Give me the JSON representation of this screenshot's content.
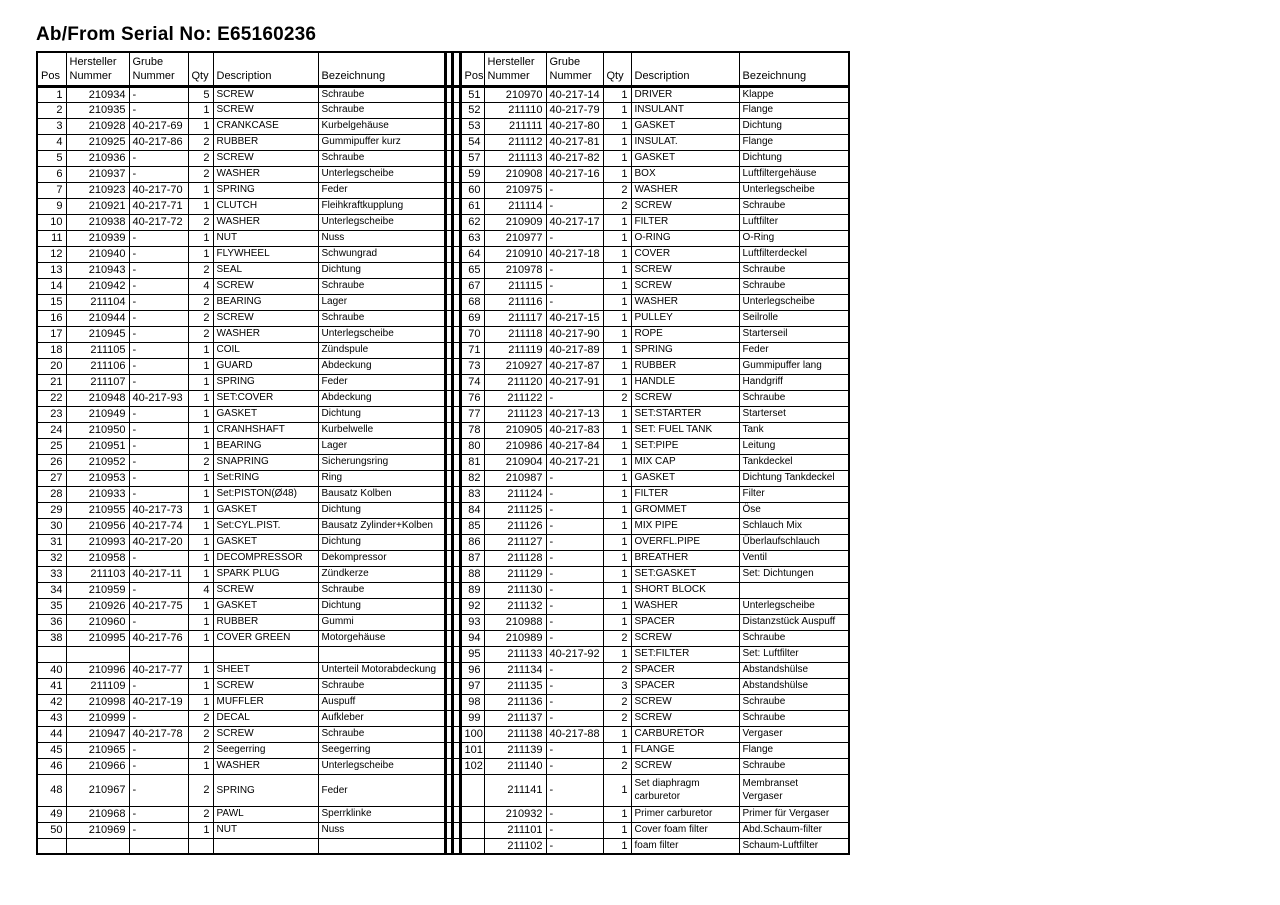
{
  "title": "Ab/From Serial No: E65160236",
  "colors": {
    "text": "#000000",
    "border": "#000000",
    "background": "#ffffff"
  },
  "table": {
    "headers": [
      "Pos",
      "Hersteller\nNummer",
      "Grube\nNummer",
      "Qty",
      "Description",
      "Bezeichnung"
    ],
    "rows": [
      {
        "l": [
          "1",
          "210934",
          "-",
          "5",
          "SCREW",
          "Schraube"
        ],
        "r": [
          "51",
          "210970",
          "40-217-14",
          "1",
          "DRIVER",
          "Klappe"
        ]
      },
      {
        "l": [
          "2",
          "210935",
          "-",
          "1",
          "SCREW",
          "Schraube"
        ],
        "r": [
          "52",
          "211110",
          "40-217-79",
          "1",
          "INSULANT",
          "Flange"
        ]
      },
      {
        "l": [
          "3",
          "210928",
          "40-217-69",
          "1",
          "CRANKCASE",
          "Kurbelgehäuse"
        ],
        "r": [
          "53",
          "211111",
          "40-217-80",
          "1",
          "GASKET",
          "Dichtung"
        ]
      },
      {
        "l": [
          "4",
          "210925",
          "40-217-86",
          "2",
          "RUBBER",
          "Gummipuffer kurz"
        ],
        "r": [
          "54",
          "211112",
          "40-217-81",
          "1",
          "INSULAT.",
          "Flange"
        ]
      },
      {
        "l": [
          "5",
          "210936",
          "-",
          "2",
          "SCREW",
          "Schraube"
        ],
        "r": [
          "57",
          "211113",
          "40-217-82",
          "1",
          "GASKET",
          "Dichtung"
        ]
      },
      {
        "l": [
          "6",
          "210937",
          "-",
          "2",
          "WASHER",
          "Unterlegscheibe"
        ],
        "r": [
          "59",
          "210908",
          "40-217-16",
          "1",
          "BOX",
          "Luftfiltergehäuse"
        ]
      },
      {
        "l": [
          "7",
          "210923",
          "40-217-70",
          "1",
          "SPRING",
          "Feder"
        ],
        "r": [
          "60",
          "210975",
          "-",
          "2",
          "WASHER",
          "Unterlegscheibe"
        ]
      },
      {
        "l": [
          "9",
          "210921",
          "40-217-71",
          "1",
          "CLUTCH",
          "Fleihkraftkupplung"
        ],
        "r": [
          "61",
          "211114",
          "-",
          "2",
          "SCREW",
          "Schraube"
        ]
      },
      {
        "l": [
          "10",
          "210938",
          "40-217-72",
          "2",
          "WASHER",
          "Unterlegscheibe"
        ],
        "r": [
          "62",
          "210909",
          "40-217-17",
          "1",
          "FILTER",
          "Luftfilter"
        ]
      },
      {
        "l": [
          "11",
          "210939",
          "-",
          "1",
          "NUT",
          "Nuss"
        ],
        "r": [
          "63",
          "210977",
          "-",
          "1",
          "O-RING",
          "O-Ring"
        ]
      },
      {
        "l": [
          "12",
          "210940",
          "-",
          "1",
          "FLYWHEEL",
          "Schwungrad"
        ],
        "r": [
          "64",
          "210910",
          "40-217-18",
          "1",
          "COVER",
          "Luftfilterdeckel"
        ]
      },
      {
        "l": [
          "13",
          "210943",
          "-",
          "2",
          "SEAL",
          "Dichtung"
        ],
        "r": [
          "65",
          "210978",
          "-",
          "1",
          "SCREW",
          "Schraube"
        ]
      },
      {
        "l": [
          "14",
          "210942",
          "-",
          "4",
          "SCREW",
          "Schraube"
        ],
        "r": [
          "67",
          "211115",
          "-",
          "1",
          "SCREW",
          "Schraube"
        ]
      },
      {
        "l": [
          "15",
          "211104",
          "-",
          "2",
          "BEARING",
          "Lager"
        ],
        "r": [
          "68",
          "211116",
          "-",
          "1",
          "WASHER",
          "Unterlegscheibe"
        ]
      },
      {
        "l": [
          "16",
          "210944",
          "-",
          "2",
          "SCREW",
          "Schraube"
        ],
        "r": [
          "69",
          "211117",
          "40-217-15",
          "1",
          "PULLEY",
          "Seilrolle"
        ]
      },
      {
        "l": [
          "17",
          "210945",
          "-",
          "2",
          "WASHER",
          "Unterlegscheibe"
        ],
        "r": [
          "70",
          "211118",
          "40-217-90",
          "1",
          "ROPE",
          "Starterseil"
        ]
      },
      {
        "l": [
          "18",
          "211105",
          "-",
          "1",
          "COIL",
          "Zündspule"
        ],
        "r": [
          "71",
          "211119",
          "40-217-89",
          "1",
          "SPRING",
          "Feder"
        ]
      },
      {
        "l": [
          "20",
          "211106",
          "-",
          "1",
          "GUARD",
          "Abdeckung"
        ],
        "r": [
          "73",
          "210927",
          "40-217-87",
          "1",
          "RUBBER",
          "Gummipuffer lang"
        ]
      },
      {
        "l": [
          "21",
          "211107",
          "-",
          "1",
          "SPRING",
          "Feder"
        ],
        "r": [
          "74",
          "211120",
          "40-217-91",
          "1",
          "HANDLE",
          "Handgriff"
        ]
      },
      {
        "l": [
          "22",
          "210948",
          "40-217-93",
          "1",
          "SET:COVER",
          "Abdeckung"
        ],
        "r": [
          "76",
          "211122",
          "-",
          "2",
          "SCREW",
          "Schraube"
        ]
      },
      {
        "l": [
          "23",
          "210949",
          "-",
          "1",
          "GASKET",
          "Dichtung"
        ],
        "r": [
          "77",
          "211123",
          "40-217-13",
          "1",
          "SET:STARTER",
          "Starterset"
        ]
      },
      {
        "l": [
          "24",
          "210950",
          "-",
          "1",
          "CRANHSHAFT",
          "Kurbelwelle"
        ],
        "r": [
          "78",
          "210905",
          "40-217-83",
          "1",
          "SET: FUEL TANK",
          "Tank"
        ]
      },
      {
        "l": [
          "25",
          "210951",
          "-",
          "1",
          "BEARING",
          "Lager"
        ],
        "r": [
          "80",
          "210986",
          "40-217-84",
          "1",
          "SET:PIPE",
          "Leitung"
        ]
      },
      {
        "l": [
          "26",
          "210952",
          "-",
          "2",
          "SNAPRING",
          "Sicherungsring"
        ],
        "r": [
          "81",
          "210904",
          "40-217-21",
          "1",
          "MIX CAP",
          "Tankdeckel"
        ]
      },
      {
        "l": [
          "27",
          "210953",
          "-",
          "1",
          "Set:RING",
          "Ring"
        ],
        "r": [
          "82",
          "210987",
          "-",
          "1",
          "GASKET",
          "Dichtung Tankdeckel"
        ]
      },
      {
        "l": [
          "28",
          "210933",
          "-",
          "1",
          "Set:PISTON(Ø48)",
          "Bausatz Kolben"
        ],
        "r": [
          "83",
          "211124",
          "-",
          "1",
          "FILTER",
          "Filter"
        ]
      },
      {
        "l": [
          "29",
          "210955",
          "40-217-73",
          "1",
          "GASKET",
          "Dichtung"
        ],
        "r": [
          "84",
          "211125",
          "-",
          "1",
          "GROMMET",
          "Öse"
        ]
      },
      {
        "l": [
          "30",
          "210956",
          "40-217-74",
          "1",
          "Set:CYL.PIST.",
          "Bausatz Zylinder+Kolben"
        ],
        "r": [
          "85",
          "211126",
          "-",
          "1",
          "MIX PIPE",
          "Schlauch Mix"
        ]
      },
      {
        "l": [
          "31",
          "210993",
          "40-217-20",
          "1",
          "GASKET",
          "Dichtung"
        ],
        "r": [
          "86",
          "211127",
          "-",
          "1",
          "OVERFL.PIPE",
          "Überlaufschlauch"
        ]
      },
      {
        "l": [
          "32",
          "210958",
          "-",
          "1",
          "DECOMPRESSOR",
          "Dekompressor"
        ],
        "r": [
          "87",
          "211128",
          "-",
          "1",
          "BREATHER",
          "Ventil"
        ]
      },
      {
        "l": [
          "33",
          "211103",
          "40-217-11",
          "1",
          "SPARK PLUG",
          "Zündkerze"
        ],
        "r": [
          "88",
          "211129",
          "-",
          "1",
          "SET:GASKET",
          "Set: Dichtungen"
        ]
      },
      {
        "l": [
          "34",
          "210959",
          "-",
          "4",
          "SCREW",
          "Schraube"
        ],
        "r": [
          "89",
          "211130",
          "-",
          "1",
          "SHORT BLOCK",
          ""
        ]
      },
      {
        "l": [
          "35",
          "210926",
          "40-217-75",
          "1",
          "GASKET",
          "Dichtung"
        ],
        "r": [
          "92",
          "211132",
          "-",
          "1",
          "WASHER",
          "Unterlegscheibe"
        ]
      },
      {
        "l": [
          "36",
          "210960",
          "-",
          "1",
          "RUBBER",
          "Gummi"
        ],
        "r": [
          "93",
          "210988",
          "-",
          "1",
          "SPACER",
          "Distanzstück Auspuff"
        ]
      },
      {
        "l": [
          "38",
          "210995",
          "40-217-76",
          "1",
          "COVER GREEN",
          "Motorgehäuse"
        ],
        "r": [
          "94",
          "210989",
          "-",
          "2",
          "SCREW",
          "Schraube"
        ]
      },
      {
        "l": [
          "",
          "",
          "",
          "",
          "",
          ""
        ],
        "r": [
          "95",
          "211133",
          "40-217-92",
          "1",
          "SET:FILTER",
          "Set: Luftfilter"
        ]
      },
      {
        "l": [
          "40",
          "210996",
          "40-217-77",
          "1",
          "SHEET",
          "Unterteil Motorabdeckung"
        ],
        "r": [
          "96",
          "211134",
          "-",
          "2",
          "SPACER",
          "Abstandshülse"
        ]
      },
      {
        "l": [
          "41",
          "211109",
          "-",
          "1",
          "SCREW",
          "Schraube"
        ],
        "r": [
          "97",
          "211135",
          "-",
          "3",
          "SPACER",
          "Abstandshülse"
        ]
      },
      {
        "l": [
          "42",
          "210998",
          "40-217-19",
          "1",
          "MUFFLER",
          "Auspuff"
        ],
        "r": [
          "98",
          "211136",
          "-",
          "2",
          "SCREW",
          "Schraube"
        ]
      },
      {
        "l": [
          "43",
          "210999",
          "-",
          "2",
          "DECAL",
          "Aufkleber"
        ],
        "r": [
          "99",
          "211137",
          "-",
          "2",
          "SCREW",
          "Schraube"
        ]
      },
      {
        "l": [
          "44",
          "210947",
          "40-217-78",
          "2",
          "SCREW",
          "Schraube"
        ],
        "r": [
          "100",
          "211138",
          "40-217-88",
          "1",
          "CARBURETOR",
          "Vergaser"
        ]
      },
      {
        "l": [
          "45",
          "210965",
          "-",
          "2",
          "Seegerring",
          "Seegerring"
        ],
        "r": [
          "101",
          "211139",
          "-",
          "1",
          "FLANGE",
          "Flange"
        ]
      },
      {
        "l": [
          "46",
          "210966",
          "-",
          "1",
          "WASHER",
          "Unterlegscheibe"
        ],
        "r": [
          "102",
          "211140",
          "-",
          "2",
          "SCREW",
          "Schraube"
        ]
      },
      {
        "l": [
          "48",
          "210967",
          "-",
          "2",
          "SPRING",
          "Feder"
        ],
        "r": [
          "",
          "211141",
          "-",
          "1",
          "Set diaphragm\ncarburetor",
          "Membranset\n Vergaser"
        ],
        "tall": true
      },
      {
        "l": [
          "49",
          "210968",
          "-",
          "2",
          "PAWL",
          "Sperrklinke"
        ],
        "r": [
          "",
          "210932",
          "-",
          "1",
          "Primer carburetor",
          "Primer für Vergaser"
        ]
      },
      {
        "l": [
          "50",
          "210969",
          "-",
          "1",
          "NUT",
          "Nuss"
        ],
        "r": [
          "",
          "211101",
          "-",
          "1",
          "Cover foam filter",
          "Abd.Schaum-filter"
        ]
      },
      {
        "l": [
          "",
          "",
          "",
          "",
          "",
          ""
        ],
        "r": [
          "",
          "211102",
          "-",
          "1",
          "foam filter",
          "Schaum-Luftfilter"
        ]
      }
    ]
  }
}
